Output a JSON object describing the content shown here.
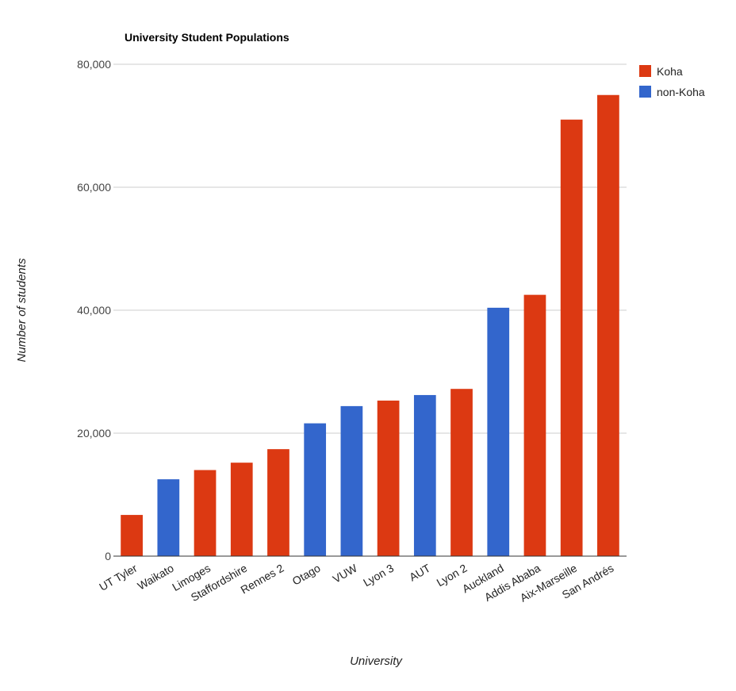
{
  "chart_data": {
    "type": "bar",
    "title": "University Student Populations",
    "xlabel": "University",
    "ylabel": "Number of students",
    "ylim": [
      0,
      80000
    ],
    "yticks": [
      0,
      20000,
      40000,
      60000,
      80000
    ],
    "ytick_labels": [
      "0",
      "20,000",
      "40,000",
      "60,000",
      "80,000"
    ],
    "grid": true,
    "legend_position": "top-right",
    "series": [
      {
        "name": "Koha",
        "color": "#dc3912"
      },
      {
        "name": "non-Koha",
        "color": "#3366cc"
      }
    ],
    "categories": [
      "UT Tyler",
      "Waikato",
      "Limoges",
      "Staffordshire",
      "Rennes 2",
      "Otago",
      "VUW",
      "Lyon 3",
      "AUT",
      "Lyon 2",
      "Auckland",
      "Addis Ababa",
      "Aix-Marseille",
      "San Andrés"
    ],
    "values": [
      6700,
      12500,
      14000,
      15200,
      17400,
      21600,
      24400,
      25300,
      26200,
      27200,
      40400,
      42500,
      71000,
      75000
    ],
    "groups": [
      "Koha",
      "non-Koha",
      "Koha",
      "Koha",
      "Koha",
      "non-Koha",
      "non-Koha",
      "Koha",
      "non-Koha",
      "Koha",
      "non-Koha",
      "Koha",
      "Koha",
      "Koha"
    ]
  }
}
